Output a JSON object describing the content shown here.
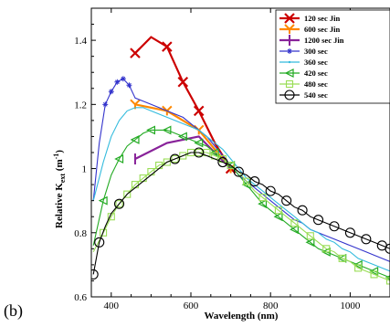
{
  "panel_label": "(b)",
  "chart_data": {
    "type": "line",
    "xlabel": "Wavelength (nm)",
    "ylabel_main": "Relative K",
    "ylabel_sub": "ext",
    "ylabel_unit_open": " (m",
    "ylabel_unit_sup": "-1",
    "ylabel_unit_close": ")",
    "xlim": [
      350,
      1100
    ],
    "ylim": [
      0.6,
      1.5
    ],
    "x_ticks": [
      400,
      600,
      800,
      1000
    ],
    "y_ticks": [
      0.6,
      0.8,
      1.0,
      1.2,
      1.4
    ],
    "x_tick_labels": [
      "400",
      "600",
      "800",
      "1000"
    ],
    "y_tick_labels": [
      "0.6",
      "0.8",
      "1",
      "1.2",
      "1.4"
    ],
    "legend_position": "top-right",
    "series": [
      {
        "name": "120 sec Jin",
        "color": "#cc0000",
        "marker": "x",
        "x": [
          460,
          500,
          540,
          580,
          620,
          660,
          700
        ],
        "y": [
          1.36,
          1.41,
          1.38,
          1.27,
          1.18,
          1.08,
          1.0
        ],
        "marker_x": [
          460,
          540,
          580,
          620,
          700
        ],
        "marker_y": [
          1.36,
          1.38,
          1.27,
          1.18,
          1.0
        ]
      },
      {
        "name": "600 sec Jin",
        "color": "#ff8800",
        "marker": "y",
        "x": [
          460,
          540,
          620,
          700
        ],
        "y": [
          1.2,
          1.18,
          1.12,
          1.0
        ],
        "marker_x": [
          460,
          540,
          620,
          700
        ],
        "marker_y": [
          1.2,
          1.18,
          1.12,
          1.0
        ]
      },
      {
        "name": "1200 sec Jin",
        "color": "#882299",
        "marker": "bar",
        "x": [
          460,
          540,
          620,
          700
        ],
        "y": [
          1.03,
          1.08,
          1.1,
          1.0
        ],
        "marker_x": [
          460
        ],
        "marker_y": [
          1.03
        ]
      },
      {
        "name": "300 sec",
        "color": "#3333cc",
        "marker": "star",
        "x": [
          355,
          370,
          385,
          400,
          415,
          430,
          445,
          460,
          480,
          500,
          520,
          540,
          560,
          580,
          600,
          620,
          640,
          660,
          680,
          700,
          720,
          740,
          760,
          780,
          800,
          820,
          840,
          860,
          880,
          900,
          920,
          940,
          960,
          980,
          1000,
          1020,
          1040,
          1060,
          1080,
          1100
        ],
        "y": [
          0.9,
          1.08,
          1.2,
          1.24,
          1.27,
          1.28,
          1.26,
          1.22,
          1.21,
          1.2,
          1.19,
          1.18,
          1.17,
          1.16,
          1.14,
          1.12,
          1.1,
          1.07,
          1.04,
          1.01,
          0.98,
          0.96,
          0.94,
          0.92,
          0.9,
          0.88,
          0.86,
          0.84,
          0.83,
          0.81,
          0.8,
          0.79,
          0.78,
          0.77,
          0.76,
          0.75,
          0.74,
          0.73,
          0.72,
          0.71
        ],
        "marker_x": [
          385,
          400,
          415,
          430,
          445
        ],
        "marker_y": [
          1.2,
          1.24,
          1.27,
          1.28,
          1.26
        ]
      },
      {
        "name": "360 sec",
        "color": "#33bbdd",
        "marker": "dot",
        "x": [
          355,
          380,
          400,
          420,
          440,
          460,
          480,
          500,
          520,
          540,
          560,
          580,
          600,
          620,
          640,
          660,
          680,
          700,
          720,
          740,
          760,
          780,
          800,
          820,
          840,
          860,
          880,
          900,
          920,
          940,
          960,
          980,
          1000,
          1020,
          1040,
          1060,
          1080,
          1100
        ],
        "y": [
          0.9,
          1.02,
          1.1,
          1.15,
          1.18,
          1.19,
          1.19,
          1.18,
          1.17,
          1.16,
          1.15,
          1.14,
          1.13,
          1.12,
          1.1,
          1.08,
          1.06,
          1.03,
          1.0,
          0.97,
          0.95,
          0.93,
          0.91,
          0.89,
          0.87,
          0.85,
          0.83,
          0.81,
          0.8,
          0.78,
          0.77,
          0.75,
          0.74,
          0.72,
          0.71,
          0.7,
          0.69,
          0.68
        ],
        "marker_x": [],
        "marker_y": []
      },
      {
        "name": "420 sec",
        "color": "#22aa22",
        "marker": "triangle-left",
        "x": [
          355,
          380,
          400,
          420,
          440,
          460,
          480,
          500,
          520,
          540,
          560,
          580,
          600,
          620,
          640,
          660,
          680,
          700,
          720,
          740,
          760,
          780,
          800,
          820,
          840,
          860,
          880,
          900,
          920,
          940,
          960,
          980,
          1000,
          1020,
          1040,
          1060,
          1080,
          1100
        ],
        "y": [
          0.76,
          0.9,
          0.98,
          1.03,
          1.07,
          1.09,
          1.11,
          1.12,
          1.12,
          1.12,
          1.11,
          1.1,
          1.09,
          1.08,
          1.07,
          1.05,
          1.03,
          1.01,
          0.98,
          0.95,
          0.92,
          0.89,
          0.87,
          0.85,
          0.83,
          0.81,
          0.79,
          0.77,
          0.75,
          0.74,
          0.73,
          0.72,
          0.71,
          0.7,
          0.69,
          0.68,
          0.67,
          0.66
        ],
        "marker_x": [
          380,
          420,
          460,
          500,
          540,
          580,
          620,
          660,
          700,
          740,
          780,
          820,
          860,
          900,
          940,
          980,
          1020,
          1060,
          1100
        ],
        "marker_y": [
          0.9,
          1.03,
          1.09,
          1.12,
          1.12,
          1.1,
          1.08,
          1.05,
          1.01,
          0.95,
          0.89,
          0.85,
          0.81,
          0.77,
          0.74,
          0.72,
          0.7,
          0.68,
          0.66
        ]
      },
      {
        "name": "480 sec",
        "color": "#99dd55",
        "marker": "square",
        "x": [
          355,
          380,
          400,
          420,
          440,
          460,
          480,
          500,
          520,
          540,
          560,
          580,
          600,
          620,
          640,
          660,
          680,
          700,
          720,
          740,
          760,
          780,
          800,
          820,
          840,
          860,
          880,
          900,
          920,
          940,
          960,
          980,
          1000,
          1020,
          1040,
          1060,
          1080,
          1100
        ],
        "y": [
          0.74,
          0.8,
          0.85,
          0.89,
          0.92,
          0.95,
          0.97,
          0.99,
          1.01,
          1.02,
          1.03,
          1.04,
          1.05,
          1.05,
          1.05,
          1.04,
          1.03,
          1.01,
          0.99,
          0.96,
          0.93,
          0.91,
          0.89,
          0.87,
          0.85,
          0.83,
          0.81,
          0.79,
          0.77,
          0.75,
          0.74,
          0.72,
          0.71,
          0.69,
          0.68,
          0.67,
          0.66,
          0.65
        ],
        "marker_x": [
          380,
          400,
          420,
          440,
          460,
          480,
          500,
          520,
          540,
          560,
          580,
          600,
          620,
          640,
          660,
          680,
          700,
          740,
          780,
          820,
          860,
          900,
          940,
          980,
          1020,
          1060,
          1100
        ],
        "marker_y": [
          0.8,
          0.85,
          0.89,
          0.92,
          0.95,
          0.97,
          0.99,
          1.01,
          1.02,
          1.03,
          1.04,
          1.05,
          1.05,
          1.05,
          1.04,
          1.03,
          1.01,
          0.96,
          0.91,
          0.87,
          0.83,
          0.79,
          0.75,
          0.72,
          0.69,
          0.67,
          0.65
        ]
      },
      {
        "name": "540 sec",
        "color": "#000000",
        "marker": "circle",
        "x": [
          355,
          370,
          385,
          400,
          420,
          440,
          460,
          480,
          500,
          520,
          540,
          560,
          580,
          600,
          620,
          640,
          660,
          680,
          700,
          720,
          740,
          760,
          780,
          800,
          820,
          840,
          860,
          880,
          900,
          920,
          940,
          960,
          980,
          1000,
          1020,
          1040,
          1060,
          1080,
          1100
        ],
        "y": [
          0.67,
          0.77,
          0.82,
          0.86,
          0.89,
          0.92,
          0.94,
          0.96,
          0.98,
          1.0,
          1.02,
          1.03,
          1.04,
          1.05,
          1.05,
          1.04,
          1.03,
          1.02,
          1.01,
          0.99,
          0.98,
          0.96,
          0.95,
          0.93,
          0.92,
          0.9,
          0.88,
          0.87,
          0.85,
          0.84,
          0.83,
          0.82,
          0.81,
          0.8,
          0.79,
          0.78,
          0.77,
          0.76,
          0.75
        ],
        "marker_x": [
          355,
          370,
          420,
          560,
          620,
          680,
          720,
          760,
          800,
          840,
          880,
          920,
          960,
          1000,
          1040,
          1080,
          1100
        ],
        "marker_y": [
          0.67,
          0.77,
          0.89,
          1.03,
          1.05,
          1.02,
          0.99,
          0.96,
          0.93,
          0.9,
          0.87,
          0.84,
          0.82,
          0.8,
          0.78,
          0.76,
          0.75
        ]
      }
    ]
  }
}
